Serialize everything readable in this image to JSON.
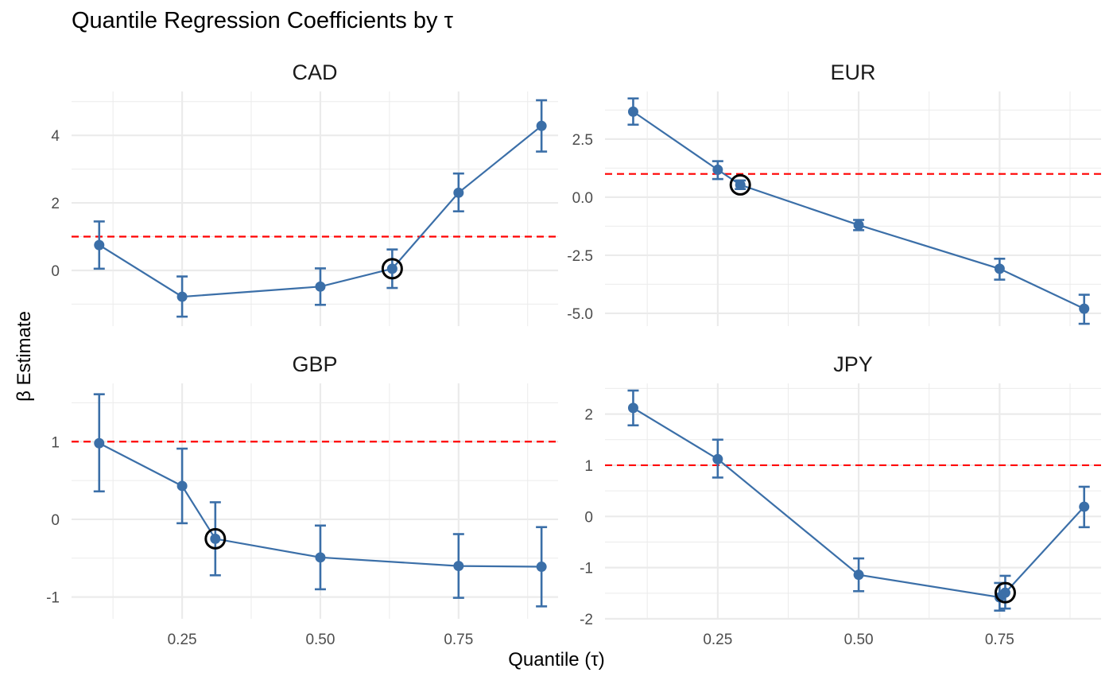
{
  "chart_data": {
    "type": "line",
    "title": "Quantile Regression Coefficients by τ",
    "xlabel": "Quantile (τ)",
    "ylabel": "β Estimate",
    "colors": {
      "series": "#3b6fa8",
      "reference": "#ff0000",
      "highlight": "#000000",
      "grid": "#ebebeb"
    },
    "reference_line": {
      "y": 1,
      "style": "dashed"
    },
    "x_ticks": [
      "0.25",
      "0.50",
      "0.75"
    ],
    "x_tick_values": [
      0.25,
      0.5,
      0.75
    ],
    "xlim": [
      0.05,
      0.93
    ],
    "panels": [
      {
        "name": "CAD",
        "ylim": [
          -1.65,
          5.3
        ],
        "y_ticks": [
          0,
          2,
          4
        ],
        "y_tick_labels": [
          "0",
          "2",
          "4"
        ],
        "points": [
          {
            "x": 0.1,
            "y": 0.75,
            "lo": 0.05,
            "hi": 1.45
          },
          {
            "x": 0.25,
            "y": -0.78,
            "lo": -1.37,
            "hi": -0.18
          },
          {
            "x": 0.5,
            "y": -0.48,
            "lo": -1.02,
            "hi": 0.06
          },
          {
            "x": 0.63,
            "y": 0.05,
            "lo": -0.52,
            "hi": 0.62
          },
          {
            "x": 0.75,
            "y": 2.3,
            "lo": 1.75,
            "hi": 2.87
          },
          {
            "x": 0.9,
            "y": 4.28,
            "lo": 3.52,
            "hi": 5.04
          }
        ],
        "highlight_x": 0.63
      },
      {
        "name": "EUR",
        "ylim": [
          -5.55,
          4.55
        ],
        "y_ticks": [
          2.5,
          0,
          -2.5,
          -5
        ],
        "y_tick_labels": [
          "2.5",
          "0.0",
          "-2.5",
          "-5.0"
        ],
        "points": [
          {
            "x": 0.1,
            "y": 3.68,
            "lo": 3.12,
            "hi": 4.25
          },
          {
            "x": 0.25,
            "y": 1.18,
            "lo": 0.78,
            "hi": 1.55
          },
          {
            "x": 0.29,
            "y": 0.53,
            "lo": 0.35,
            "hi": 0.72
          },
          {
            "x": 0.5,
            "y": -1.2,
            "lo": -1.42,
            "hi": -0.98
          },
          {
            "x": 0.75,
            "y": -3.08,
            "lo": -3.55,
            "hi": -2.65
          },
          {
            "x": 0.9,
            "y": -4.8,
            "lo": -5.45,
            "hi": -4.2
          }
        ],
        "highlight_x": 0.29
      },
      {
        "name": "GBP",
        "ylim": [
          -1.28,
          1.75
        ],
        "y_ticks": [
          1,
          0,
          -1
        ],
        "y_tick_labels": [
          "1",
          "0",
          "-1"
        ],
        "points": [
          {
            "x": 0.1,
            "y": 0.98,
            "lo": 0.36,
            "hi": 1.61
          },
          {
            "x": 0.25,
            "y": 0.43,
            "lo": -0.05,
            "hi": 0.91
          },
          {
            "x": 0.31,
            "y": -0.25,
            "lo": -0.72,
            "hi": 0.22
          },
          {
            "x": 0.5,
            "y": -0.49,
            "lo": -0.9,
            "hi": -0.08
          },
          {
            "x": 0.75,
            "y": -0.6,
            "lo": -1.01,
            "hi": -0.19
          },
          {
            "x": 0.9,
            "y": -0.61,
            "lo": -1.12,
            "hi": -0.1
          }
        ],
        "highlight_x": 0.31
      },
      {
        "name": "JPY",
        "ylim": [
          -2.0,
          2.6
        ],
        "y_ticks": [
          2,
          1,
          0,
          -1,
          -2
        ],
        "y_tick_labels": [
          "2",
          "1",
          "0",
          "-1",
          "-2"
        ],
        "points": [
          {
            "x": 0.1,
            "y": 2.12,
            "lo": 1.78,
            "hi": 2.46
          },
          {
            "x": 0.25,
            "y": 1.12,
            "lo": 0.76,
            "hi": 1.5
          },
          {
            "x": 0.5,
            "y": -1.14,
            "lo": -1.46,
            "hi": -0.82
          },
          {
            "x": 0.75,
            "y": -1.58,
            "lo": -1.84,
            "hi": -1.3
          },
          {
            "x": 0.76,
            "y": -1.49,
            "lo": -1.8,
            "hi": -1.16
          },
          {
            "x": 0.9,
            "y": 0.19,
            "lo": -0.21,
            "hi": 0.58
          }
        ],
        "highlight_x": 0.76
      }
    ]
  }
}
